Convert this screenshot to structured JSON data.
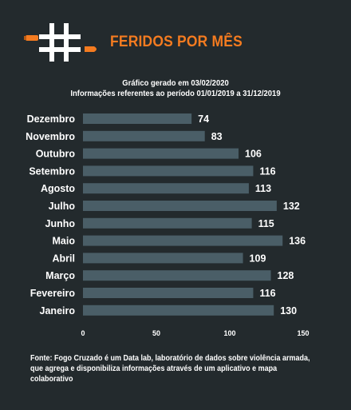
{
  "header": {
    "title": "FERIDOS POR MÊS",
    "logo_icon": "hashtag-bullet-icon",
    "accent_color": "#f47b20"
  },
  "subtitle": {
    "line1": "Gráfico gerado em 03/02/2020",
    "line2": "Informações referentes ao período 01/01/2019 a 31/12/2019"
  },
  "footer": {
    "source": "Fonte: Fogo Cruzado é um Data lab, laboratório de dados sobre violência armada, que agrega e disponibiliza informações através de um aplicativo e mapa colaborativo"
  },
  "chart_data": {
    "type": "bar",
    "orientation": "horizontal",
    "categories": [
      "Dezembro",
      "Novembro",
      "Outubro",
      "Setembro",
      "Agosto",
      "Julho",
      "Junho",
      "Maio",
      "Abril",
      "Março",
      "Fevereiro",
      "Janeiro"
    ],
    "values": [
      74,
      83,
      106,
      116,
      113,
      132,
      115,
      136,
      109,
      128,
      116,
      130
    ],
    "xlim": [
      0,
      150
    ],
    "xticks": [
      0,
      50,
      100,
      150
    ],
    "grid": false,
    "bar_color": "#4a5e67",
    "data_labels": true
  }
}
